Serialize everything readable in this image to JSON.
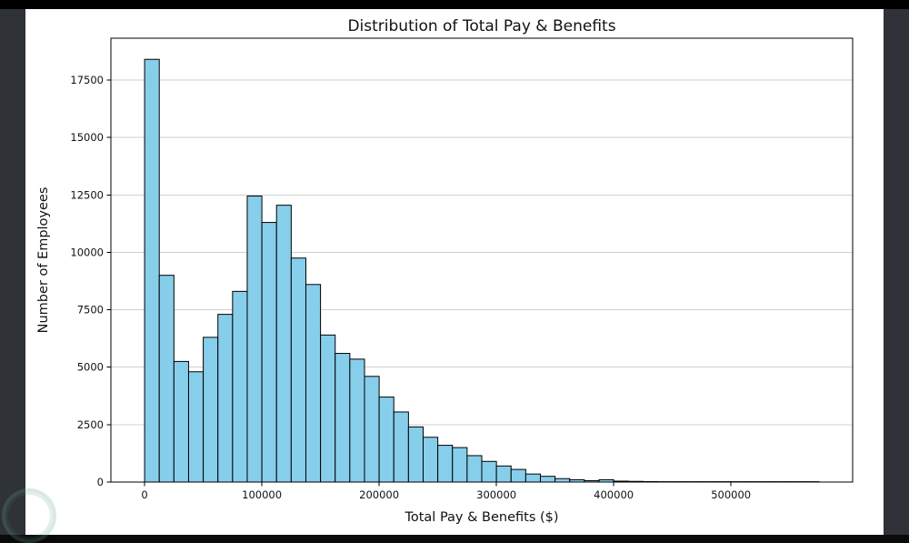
{
  "window": {
    "colors": {
      "page_bg": "#2f3236",
      "letterbox": "#000000",
      "figure_bg": "#ffffff"
    }
  },
  "chart_data": {
    "type": "bar",
    "subtype": "histogram",
    "title": "Distribution of Total Pay & Benefits",
    "xlabel": "Total Pay & Benefits ($)",
    "ylabel": "Number of Employees",
    "bin_start": 0,
    "bin_width": 12500,
    "values": [
      18400,
      9000,
      5250,
      4800,
      6300,
      7300,
      8300,
      12450,
      11300,
      12050,
      9750,
      8600,
      6400,
      5600,
      5350,
      4600,
      3700,
      3050,
      2400,
      1950,
      1600,
      1500,
      1150,
      900,
      700,
      550,
      350,
      250,
      150,
      100,
      60,
      100,
      40,
      30,
      20,
      15,
      12,
      10,
      8,
      6,
      5,
      4,
      3,
      3,
      2,
      2
    ],
    "x_ticks": [
      0,
      100000,
      200000,
      300000,
      400000,
      500000
    ],
    "y_ticks": [
      0,
      2500,
      5000,
      7500,
      10000,
      12500,
      15000,
      17500
    ],
    "xlim": [
      -28750,
      603750
    ],
    "ylim": [
      0,
      19320
    ],
    "grid": "horizontal",
    "grid_color": "#d0d0d0",
    "bar_color": "#87ceeb",
    "bar_edge_color": "#000000",
    "legend": "none"
  }
}
